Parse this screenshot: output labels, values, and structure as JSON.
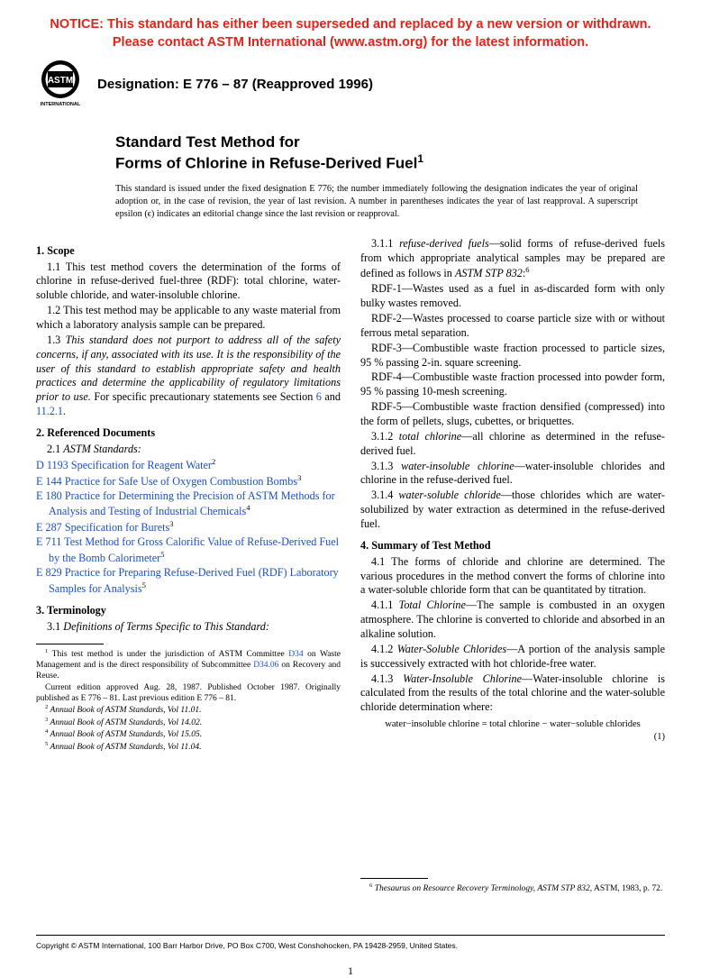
{
  "notice": {
    "line1": "NOTICE: This standard has either been superseded and replaced by a new version or withdrawn.",
    "line2": "Please contact ASTM International (www.astm.org) for the latest information."
  },
  "header": {
    "logo_label": "ASTM INTERNATIONAL",
    "designation": "Designation: E 776 – 87 (Reapproved 1996)"
  },
  "title": {
    "line1": "Standard Test Method for",
    "line2": "Forms of Chlorine in Refuse-Derived Fuel",
    "super": "1"
  },
  "issuance": "This standard is issued under the fixed designation E 776; the number immediately following the designation indicates the year of original adoption or, in the case of revision, the year of last revision. A number in parentheses indicates the year of last reapproval. A superscript epsilon (ϵ) indicates an editorial change since the last revision or reapproval.",
  "left": {
    "s1": "1. Scope",
    "p11": "1.1 This test method covers the determination of the forms of chlorine in refuse-derived fuel-three (RDF): total chlorine, water-soluble chloride, and water-insoluble chlorine.",
    "p12": "1.2 This test method may be applicable to any waste material from which a laboratory analysis sample can be prepared.",
    "p13a": "1.3 ",
    "p13i": "This standard does not purport to address all of the safety concerns, if any, associated with its use. It is the responsibility of the user of this standard to establish appropriate safety and health practices and determine the applicability of regulatory limitations prior to use.",
    "p13b": " For specific precautionary statements see Section ",
    "p13link1": "6",
    "p13c": " and ",
    "p13link2": "11.2.1",
    "p13d": ".",
    "s2": "2. Referenced Documents",
    "s21": "2.1 ",
    "s21i": "ASTM Standards:",
    "refs": [
      {
        "code": "D 1193",
        "title": "Specification for Reagent Water",
        "sup": "2"
      },
      {
        "code": "E 144",
        "title": "Practice for Safe Use of Oxygen Combustion Bombs",
        "sup": "3"
      },
      {
        "code": "E 180",
        "title": "Practice for Determining the Precision of ASTM Methods for Analysis and Testing of Industrial Chemicals",
        "sup": "4"
      },
      {
        "code": "E 287",
        "title": "Specification for Burets",
        "sup": "3"
      },
      {
        "code": "E 711",
        "title": "Test Method for Gross Calorific Value of Refuse-Derived Fuel by the Bomb Calorimeter",
        "sup": "5"
      },
      {
        "code": "E 829",
        "title": "Practice for Preparing Refuse-Derived Fuel (RDF) Laboratory Samples for Analysis",
        "sup": "5"
      }
    ],
    "s3": "3. Terminology",
    "p31": "3.1 ",
    "p31i": "Definitions of Terms Specific to This Standard:",
    "fn1a": " This test method is under the jurisdiction of ASTM Committee ",
    "fn1l1": "D34",
    "fn1b": " on Waste Management and is the direct responsibility of Subcommittee ",
    "fn1l2": "D34.06",
    "fn1c": " on Recovery and Reuse.",
    "fn1d": "Current edition approved Aug. 28, 1987. Published October 1987. Originally published as E 776 – 81. Last previous edition E 776 – 81.",
    "fn2": " Annual Book of ASTM Standards, Vol 11.01.",
    "fn3": " Annual Book of ASTM Standards, Vol 14.02.",
    "fn4": " Annual Book of ASTM Standards, Vol 15.05.",
    "fn5": " Annual Book of ASTM Standards, Vol 11.04."
  },
  "right": {
    "p311a": "3.1.1 ",
    "p311i": "refuse-derived fuels",
    "p311b": "—solid forms of refuse-derived fuels from which appropriate analytical samples may be prepared are defined as follows in ",
    "p311i2": "ASTM STP 832",
    "p311c": ":",
    "p311sup": "6",
    "rdf1": "RDF-1—Wastes used as a fuel in as-discarded form with only bulky wastes removed.",
    "rdf2": "RDF-2—Wastes processed to coarse particle size with or without ferrous metal separation.",
    "rdf3": "RDF-3—Combustible waste fraction processed to particle sizes, 95 % passing 2-in. square screening.",
    "rdf4": "RDF-4—Combustible waste fraction processed into powder form, 95 % passing 10-mesh screening.",
    "rdf5": "RDF-5—Combustible waste fraction densified (compressed) into the form of pellets, slugs, cubettes, or briquettes.",
    "p312a": "3.1.2 ",
    "p312i": "total chlorine",
    "p312b": "—all chlorine as determined in the refuse-derived fuel.",
    "p313a": "3.1.3 ",
    "p313i": "water-insoluble chlorine",
    "p313b": "—water-insoluble chlorides and chlorine in the refuse-derived fuel.",
    "p314a": "3.1.4 ",
    "p314i": "water-soluble chloride",
    "p314b": "—those chlorides which are water-solubilized by water extraction as determined in the refuse-derived fuel.",
    "s4": "4. Summary of Test Method",
    "p41": "4.1 The forms of chloride and chlorine are determined. The various procedures in the method convert the forms of chlorine into a water-soluble chloride form that can be quantitated by titration.",
    "p411a": "4.1.1 ",
    "p411i": "Total Chlorine",
    "p411b": "—The sample is combusted in an oxygen atmosphere. The chlorine is converted to chloride and absorbed in an alkaline solution.",
    "p412a": "4.1.2 ",
    "p412i": "Water-Soluble Chlorides",
    "p412b": "—A portion of the analysis sample is successively extracted with hot chloride-free water.",
    "p413a": "4.1.3 ",
    "p413i": "Water-Insoluble Chlorine",
    "p413b": "—Water-insoluble chlorine is calculated from the results of the total chlorine and the water-soluble chloride determination where:",
    "eq": "water−insoluble chlorine = total chlorine − water−soluble chlorides",
    "eqno": "(1)",
    "fn6a": " Thesaurus on Resource Recovery Terminology, ASTM STP 832",
    "fn6b": ", ASTM, 1983, p. 72."
  },
  "copyright": "Copyright © ASTM International, 100 Barr Harbor Drive, PO Box C700, West Conshohocken, PA 19428-2959, United States.",
  "pagenum": "1"
}
